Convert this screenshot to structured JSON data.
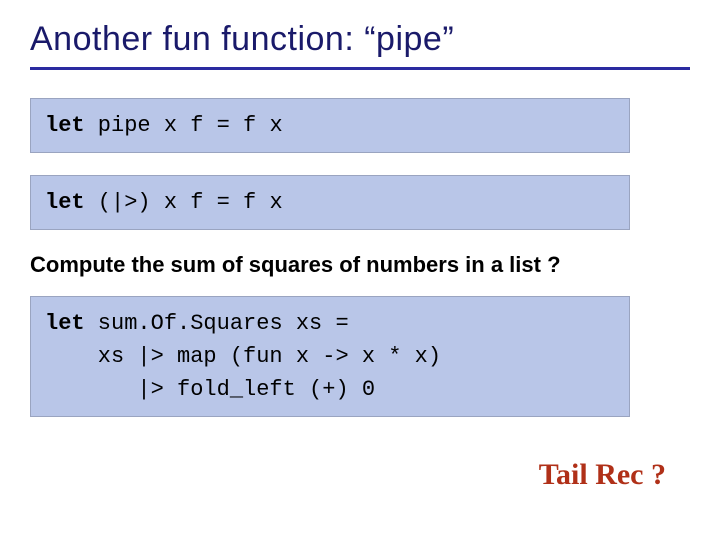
{
  "title": "Another fun function: “pipe”",
  "code1": {
    "kw": "let",
    "rest": " pipe x f = f x"
  },
  "code2": {
    "kw": "let",
    "rest": " (|>) x f = f x"
  },
  "subhead": "Compute the sum of squares of numbers in a list ?",
  "code3": {
    "kw": "let",
    "line1_rest": " sum.Of.Squares xs =",
    "line2": "    xs |> map (fun x -> x * x)",
    "line3": "       |> fold_left (+) 0"
  },
  "tailrec": "Tail Rec  ?",
  "colors": {
    "title_color": "#1a1a6a",
    "rule_color": "#2a2aa0",
    "codebox_bg": "#b9c6e8",
    "codebox_border": "#9aa4c0",
    "tailrec_color": "#b03018",
    "background": "#ffffff"
  },
  "fontsizes": {
    "title": 34,
    "code": 22,
    "subhead": 22,
    "tailrec": 30
  }
}
